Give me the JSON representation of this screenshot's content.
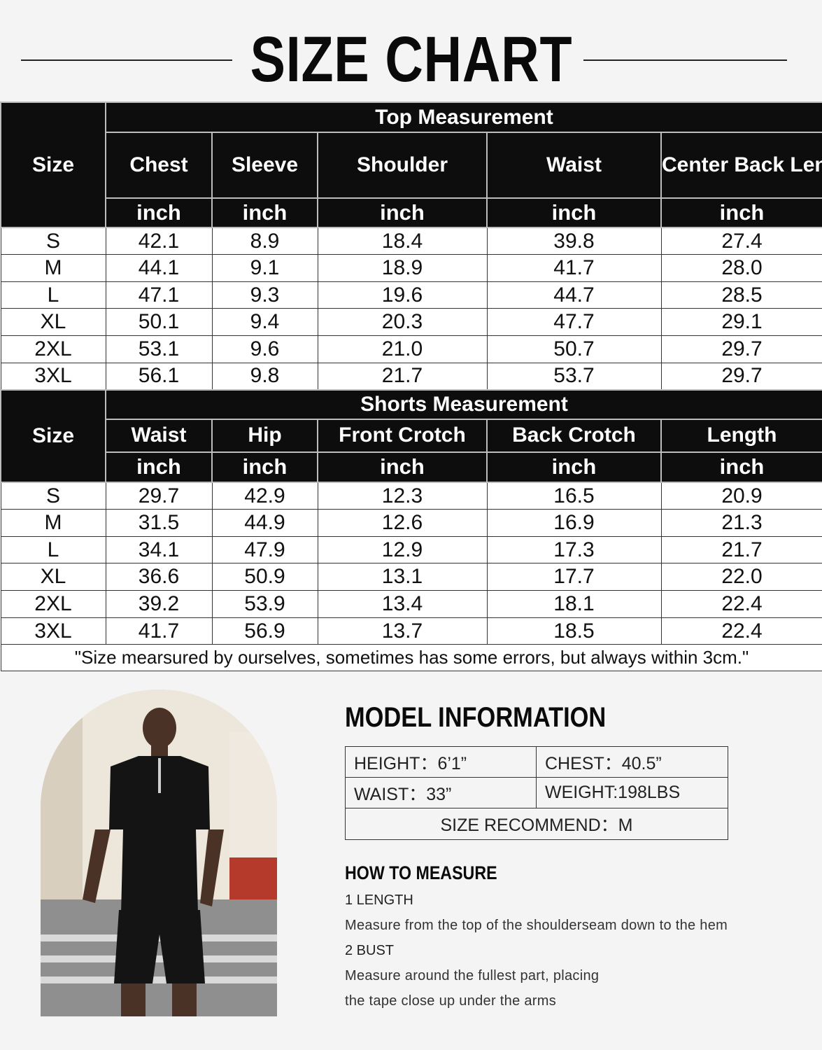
{
  "title": "SIZE CHART",
  "top": {
    "section_label": "Top Measurement",
    "size_label": "Size",
    "columns": [
      "Chest",
      "Sleeve",
      "Shoulder",
      "Waist",
      "Center Back Length"
    ],
    "unit": "inch",
    "rows": [
      [
        "S",
        "42.1",
        "8.9",
        "18.4",
        "39.8",
        "27.4"
      ],
      [
        "M",
        "44.1",
        "9.1",
        "18.9",
        "41.7",
        "28.0"
      ],
      [
        "L",
        "47.1",
        "9.3",
        "19.6",
        "44.7",
        "28.5"
      ],
      [
        "XL",
        "50.1",
        "9.4",
        "20.3",
        "47.7",
        "29.1"
      ],
      [
        "2XL",
        "53.1",
        "9.6",
        "21.0",
        "50.7",
        "29.7"
      ],
      [
        "3XL",
        "56.1",
        "9.8",
        "21.7",
        "53.7",
        "29.7"
      ]
    ]
  },
  "shorts": {
    "section_label": "Shorts Measurement",
    "size_label": "Size",
    "columns": [
      "Waist",
      "Hip",
      "Front Crotch",
      "Back Crotch",
      "Length"
    ],
    "unit": "inch",
    "rows": [
      [
        "S",
        "29.7",
        "42.9",
        "12.3",
        "16.5",
        "20.9"
      ],
      [
        "M",
        "31.5",
        "44.9",
        "12.6",
        "16.9",
        "21.3"
      ],
      [
        "L",
        "34.1",
        "47.9",
        "12.9",
        "17.3",
        "21.7"
      ],
      [
        "XL",
        "36.6",
        "50.9",
        "13.1",
        "17.7",
        "22.0"
      ],
      [
        "2XL",
        "39.2",
        "53.9",
        "13.4",
        "18.1",
        "22.4"
      ],
      [
        "3XL",
        "41.7",
        "56.9",
        "13.7",
        "18.5",
        "22.4"
      ]
    ]
  },
  "note": "\"Size mearsured by ourselves, sometimes has some errors, but always within 3cm.\"",
  "model": {
    "title": "MODEL INFORMATION",
    "height": "HEIGHT：6’1”",
    "chest": "CHEST：40.5”",
    "waist": "WAIST：33”",
    "weight": "WEIGHT:198LBS",
    "size_recommend": "SIZE RECOMMEND：M"
  },
  "how_to_measure": {
    "title": "HOW TO MEASURE",
    "steps": [
      {
        "label": "1 LENGTH",
        "lines": [
          "Measure from the top of the shoulderseam down to the hem"
        ]
      },
      {
        "label": "2 BUST",
        "lines": [
          "Measure around the fullest part, placing",
          "the tape close up under the arms"
        ]
      }
    ]
  },
  "colors": {
    "header_bg": "#0d0d0d",
    "page_bg": "#f4f4f4"
  }
}
